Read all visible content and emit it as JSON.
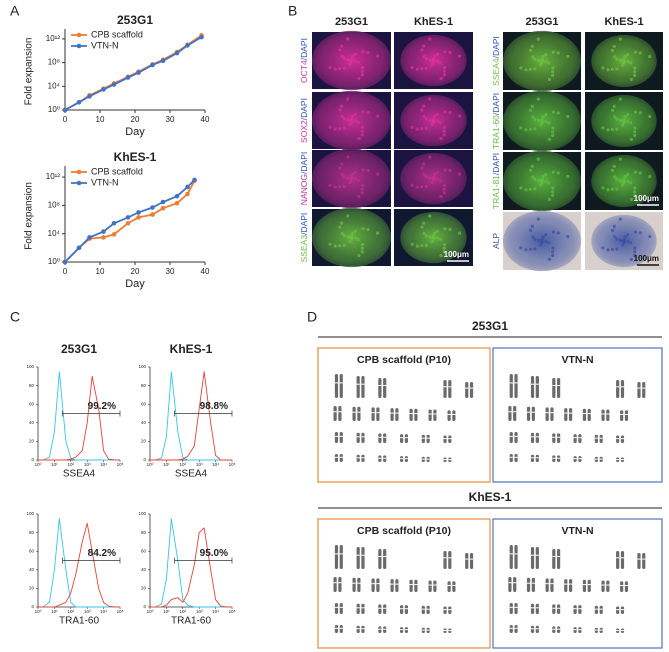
{
  "panel_labels": [
    "A",
    "B",
    "C",
    "D"
  ],
  "chart_data": [
    {
      "type": "line",
      "title": "253G1",
      "x_label": "Day",
      "y_label": "Fold expansion",
      "xlim": [
        0,
        40
      ],
      "xticks": [
        0,
        10,
        20,
        30,
        40
      ],
      "ylim": [
        1,
        10000000000000.0
      ],
      "log_y": true,
      "yticks": [
        {
          "value": 1,
          "label": "10⁰"
        },
        {
          "value": 10000.0,
          "label": "10⁴"
        },
        {
          "value": 100000000.0,
          "label": "10⁸"
        },
        {
          "value": 1000000000000.0,
          "label": "10¹²"
        }
      ],
      "legend": "upper left",
      "series": [
        {
          "name": "CPB scaffold",
          "color": "#ed7d31",
          "x": [
            0,
            4,
            7,
            11,
            14,
            18,
            21,
            25,
            28,
            32,
            35,
            39
          ],
          "values": [
            1,
            20,
            300,
            4000,
            30000.0,
            400000.0,
            3000000.0,
            50000000.0,
            300000000.0,
            6000000000.0,
            100000000000.0,
            4000000000000.0
          ]
        },
        {
          "name": "VTN-N",
          "color": "#4472c4",
          "x": [
            0,
            4,
            7,
            11,
            14,
            18,
            21,
            25,
            28,
            32,
            35,
            39
          ],
          "values": [
            1,
            20,
            200,
            3000,
            20000.0,
            300000.0,
            2000000.0,
            40000000.0,
            200000000.0,
            4000000000.0,
            80000000000.0,
            2000000000000.0
          ]
        }
      ]
    },
    {
      "type": "line",
      "title": "KhES-1",
      "x_label": "Day",
      "y_label": "Fold expansion",
      "xlim": [
        0,
        40
      ],
      "xticks": [
        0,
        10,
        20,
        30,
        40
      ],
      "ylim": [
        1,
        10000000000000.0
      ],
      "log_y": true,
      "yticks": [
        {
          "value": 1,
          "label": "10⁰"
        },
        {
          "value": 10000.0,
          "label": "10⁴"
        },
        {
          "value": 100000000.0,
          "label": "10⁸"
        },
        {
          "value": 1000000000000.0,
          "label": "10¹²"
        }
      ],
      "legend": "upper left",
      "series": [
        {
          "name": "CPB scaffold",
          "color": "#ed7d31",
          "x": [
            0,
            4,
            7,
            11,
            14,
            18,
            21,
            25,
            28,
            32,
            35,
            37
          ],
          "values": [
            1,
            100,
            2000,
            3000,
            8000,
            300000.0,
            2000000.0,
            5000000.0,
            40000000.0,
            200000000.0,
            4000000000.0,
            300000000000.0
          ]
        },
        {
          "name": "VTN-N",
          "color": "#4472c4",
          "x": [
            0,
            4,
            7,
            11,
            14,
            18,
            21,
            25,
            28,
            32,
            35,
            37
          ],
          "values": [
            1,
            100,
            3000,
            20000.0,
            300000.0,
            2000000.0,
            10000000.0,
            50000000.0,
            300000000.0,
            2000000000.0,
            40000000000.0,
            400000000000.0
          ]
        }
      ]
    },
    {
      "type": "flow",
      "title": "253G1",
      "x_label": "SSEA4",
      "annotation": "99.2%",
      "xlim": [
        1,
        100000
      ],
      "log_x": true,
      "xticks": [
        {
          "value": 1,
          "label": "10⁰"
        },
        {
          "value": 10,
          "label": "10¹"
        },
        {
          "value": 100,
          "label": "10²"
        },
        {
          "value": 1000,
          "label": "10³"
        },
        {
          "value": 10000,
          "label": "10⁴"
        },
        {
          "value": 100000,
          "label": "10⁵"
        }
      ],
      "ylim": [
        0,
        100
      ],
      "yticks": [
        0,
        20,
        40,
        60,
        80,
        100
      ],
      "x": [
        1,
        2,
        5,
        10,
        20,
        50,
        100,
        200,
        500,
        1000,
        2000,
        5000,
        10000,
        20000,
        50000,
        100000
      ],
      "series": [
        {
          "color": "#35c6e8",
          "values": [
            0,
            0,
            3,
            30,
            95,
            20,
            2,
            0,
            0,
            0,
            0,
            0,
            0,
            0,
            0,
            0
          ]
        },
        {
          "color": "#e8413a",
          "values": [
            0,
            0,
            0,
            0,
            0,
            0,
            1,
            3,
            10,
            40,
            90,
            55,
            10,
            1,
            0,
            0
          ]
        }
      ]
    },
    {
      "type": "flow",
      "title": "KhES-1",
      "x_label": "SSEA4",
      "annotation": "98.8%",
      "xlim": [
        1,
        100000
      ],
      "log_x": true,
      "xticks": [
        {
          "value": 1,
          "label": "10⁰"
        },
        {
          "value": 10,
          "label": "10¹"
        },
        {
          "value": 100,
          "label": "10²"
        },
        {
          "value": 1000,
          "label": "10³"
        },
        {
          "value": 10000,
          "label": "10⁴"
        },
        {
          "value": 100000,
          "label": "10⁵"
        }
      ],
      "ylim": [
        0,
        100
      ],
      "yticks": [
        0,
        20,
        40,
        60,
        80,
        100
      ],
      "x": [
        1,
        2,
        5,
        10,
        20,
        50,
        100,
        200,
        500,
        1000,
        2000,
        5000,
        10000,
        20000,
        50000,
        100000
      ],
      "series": [
        {
          "color": "#35c6e8",
          "values": [
            0,
            0,
            2,
            25,
            95,
            30,
            3,
            0,
            0,
            0,
            0,
            0,
            0,
            0,
            0,
            0
          ]
        },
        {
          "color": "#e8413a",
          "values": [
            0,
            0,
            0,
            0,
            0,
            0,
            1,
            4,
            15,
            55,
            95,
            40,
            5,
            0,
            0,
            0
          ]
        }
      ]
    },
    {
      "type": "flow",
      "x_label": "TRA1-60",
      "annotation": "84.2%",
      "xlim": [
        1,
        100000
      ],
      "log_x": true,
      "xticks": [
        {
          "value": 1,
          "label": "10⁰"
        },
        {
          "value": 10,
          "label": "10¹"
        },
        {
          "value": 100,
          "label": "10²"
        },
        {
          "value": 1000,
          "label": "10³"
        },
        {
          "value": 10000,
          "label": "10⁴"
        },
        {
          "value": 100000,
          "label": "10⁵"
        }
      ],
      "ylim": [
        0,
        100
      ],
      "yticks": [
        0,
        20,
        40,
        60,
        80,
        100
      ],
      "x": [
        1,
        2,
        5,
        10,
        20,
        50,
        100,
        200,
        500,
        1000,
        2000,
        5000,
        10000,
        20000,
        50000,
        100000
      ],
      "series": [
        {
          "color": "#35c6e8",
          "values": [
            0,
            0,
            5,
            40,
            95,
            40,
            5,
            0,
            0,
            0,
            0,
            0,
            0,
            0,
            0,
            0
          ]
        },
        {
          "color": "#e8413a",
          "values": [
            0,
            0,
            0,
            0,
            2,
            5,
            15,
            35,
            70,
            90,
            60,
            20,
            5,
            1,
            0,
            0
          ]
        }
      ]
    },
    {
      "type": "flow",
      "x_label": "TRA1-60",
      "annotation": "95.0%",
      "xlim": [
        1,
        100000
      ],
      "log_x": true,
      "xticks": [
        {
          "value": 1,
          "label": "10⁰"
        },
        {
          "value": 10,
          "label": "10¹"
        },
        {
          "value": 100,
          "label": "10²"
        },
        {
          "value": 1000,
          "label": "10³"
        },
        {
          "value": 10000,
          "label": "10⁴"
        },
        {
          "value": 100000,
          "label": "10⁵"
        }
      ],
      "ylim": [
        0,
        100
      ],
      "yticks": [
        0,
        20,
        40,
        60,
        80,
        100
      ],
      "x": [
        1,
        2,
        5,
        10,
        20,
        50,
        100,
        200,
        500,
        1000,
        2000,
        5000,
        10000,
        20000,
        50000,
        100000
      ],
      "series": [
        {
          "color": "#35c6e8",
          "values": [
            0,
            0,
            3,
            30,
            95,
            50,
            8,
            2,
            0,
            0,
            0,
            0,
            0,
            0,
            0,
            0
          ]
        },
        {
          "color": "#e8413a",
          "values": [
            0,
            0,
            0,
            2,
            8,
            10,
            5,
            15,
            45,
            80,
            85,
            40,
            8,
            1,
            0,
            0
          ]
        }
      ]
    }
  ],
  "microscopy": {
    "scale_bar": "100μm",
    "blocks": [
      {
        "columns": [
          "253G1",
          "KhES-1"
        ],
        "rows": [
          {
            "marker": "OCT4",
            "stain": "/DAPI",
            "marker_color": "#e0309c",
            "background": "#1c1440"
          },
          {
            "marker": "SOX2",
            "stain": "/DAPI",
            "marker_color": "#d8309c",
            "background": "#1c1440"
          },
          {
            "marker": "NANOG",
            "stain": "/DAPI",
            "marker_color": "#c03090",
            "background": "#1c1440"
          },
          {
            "marker": "SSEA3",
            "stain": "/DAPI",
            "marker_color": "#6cc040",
            "background": "#101830"
          }
        ]
      },
      {
        "columns": [
          "253G1",
          "KhES-1"
        ],
        "rows": [
          {
            "marker": "SSEA4",
            "stain": "/DAPI",
            "marker_color": "#70c040",
            "background": "#0e1a20"
          },
          {
            "marker": "TRA1-60",
            "stain": "/DAPI",
            "marker_color": "#60c040",
            "background": "#0e1a20"
          },
          {
            "marker": "TRA1-81",
            "stain": "/DAPI",
            "marker_color": "#60c040",
            "background": "#0e1a20"
          },
          {
            "marker": "ALP",
            "marker_color": "#3a4fa0",
            "background": "#d8d0cc"
          }
        ]
      }
    ]
  },
  "karyotype": [
    {
      "title": "253G1",
      "panels": [
        {
          "label": "CPB scaffold (P10)",
          "color": "#e8954a"
        },
        {
          "label": "VTN-N",
          "color": "#5b7fc0"
        }
      ]
    },
    {
      "title": "KhES-1",
      "panels": [
        {
          "label": "CPB scaffold (P10)",
          "color": "#e8954a"
        },
        {
          "label": "VTN-N",
          "color": "#5b7fc0"
        }
      ]
    }
  ]
}
